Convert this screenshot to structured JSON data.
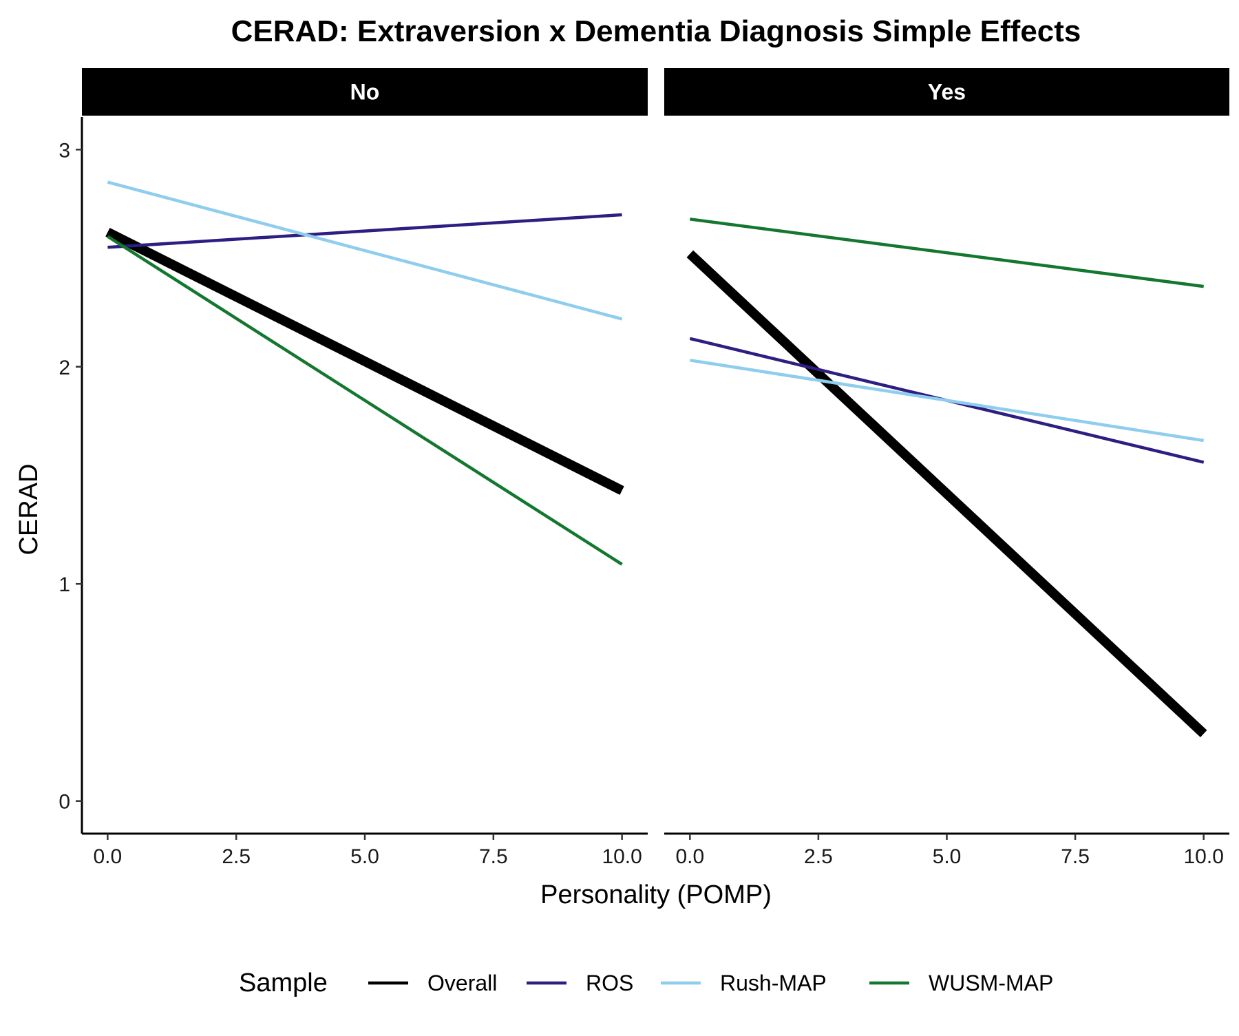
{
  "chart_data": {
    "type": "line",
    "title": "CERAD: Extraversion x Dementia Diagnosis Simple Effects",
    "xlabel": "Personality (POMP)",
    "ylabel": "CERAD",
    "xlim": [
      -0.5,
      10.5
    ],
    "ylim": [
      -0.15,
      3.15
    ],
    "x_ticks": [
      0,
      2.5,
      5,
      7.5,
      10
    ],
    "x_tick_labels": [
      "0.0",
      "2.5",
      "5.0",
      "7.5",
      "10.0"
    ],
    "y_ticks": [
      0,
      1,
      2,
      3
    ],
    "y_tick_labels": [
      "0",
      "1",
      "2",
      "3"
    ],
    "grid": false,
    "legend": {
      "title": "Sample",
      "placement": "bottom",
      "entries": [
        "Overall",
        "ROS",
        "Rush-MAP",
        "WUSM-MAP"
      ]
    },
    "series_styles": [
      {
        "name": "Overall",
        "color": "#000000",
        "width": "thick"
      },
      {
        "name": "ROS",
        "color": "#2d1e82",
        "width": "normal"
      },
      {
        "name": "Rush-MAP",
        "color": "#8ecdee",
        "width": "normal"
      },
      {
        "name": "WUSM-MAP",
        "color": "#14772f",
        "width": "normal"
      }
    ],
    "panels": [
      {
        "label": "No",
        "series": [
          {
            "name": "Overall",
            "x": [
              0,
              10
            ],
            "y": [
              2.62,
              1.43
            ]
          },
          {
            "name": "ROS",
            "x": [
              0,
              10
            ],
            "y": [
              2.55,
              2.7
            ]
          },
          {
            "name": "Rush-MAP",
            "x": [
              0,
              10
            ],
            "y": [
              2.85,
              2.22
            ]
          },
          {
            "name": "WUSM-MAP",
            "x": [
              0,
              10
            ],
            "y": [
              2.6,
              1.09
            ]
          }
        ]
      },
      {
        "label": "Yes",
        "series": [
          {
            "name": "Overall",
            "x": [
              0,
              10
            ],
            "y": [
              2.52,
              0.31
            ]
          },
          {
            "name": "ROS",
            "x": [
              0,
              10
            ],
            "y": [
              2.13,
              1.56
            ]
          },
          {
            "name": "Rush-MAP",
            "x": [
              0,
              10
            ],
            "y": [
              2.03,
              1.66
            ]
          },
          {
            "name": "WUSM-MAP",
            "x": [
              0,
              10
            ],
            "y": [
              2.68,
              2.37
            ]
          }
        ]
      }
    ]
  }
}
